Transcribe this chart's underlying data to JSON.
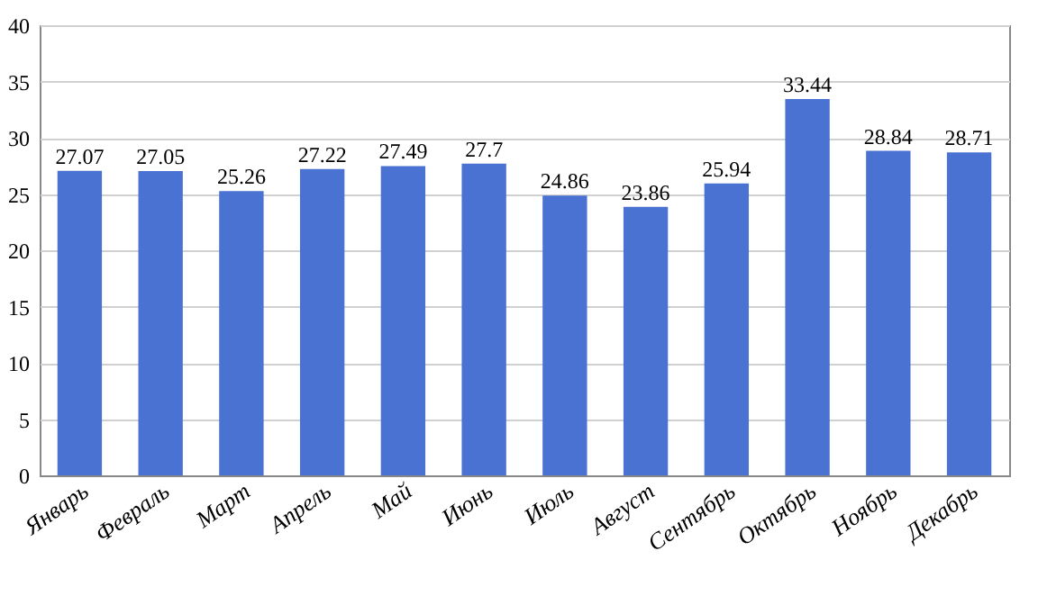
{
  "chart_data": {
    "type": "bar",
    "categories": [
      "Январь",
      "Февраль",
      "Март",
      "Апрель",
      "Май",
      "Июнь",
      "Июль",
      "Август",
      "Сентябрь",
      "Октябрь",
      "Ноябрь",
      "Декабрь"
    ],
    "values": [
      27.07,
      27.05,
      25.26,
      27.22,
      27.49,
      27.7,
      24.86,
      23.86,
      25.94,
      33.44,
      28.84,
      28.71
    ],
    "color": "#4a72d2",
    "ylim": [
      0,
      40
    ],
    "yticks": [
      0,
      5,
      10,
      15,
      20,
      25,
      30,
      35,
      40
    ],
    "grid": "y",
    "data_labels": true
  }
}
